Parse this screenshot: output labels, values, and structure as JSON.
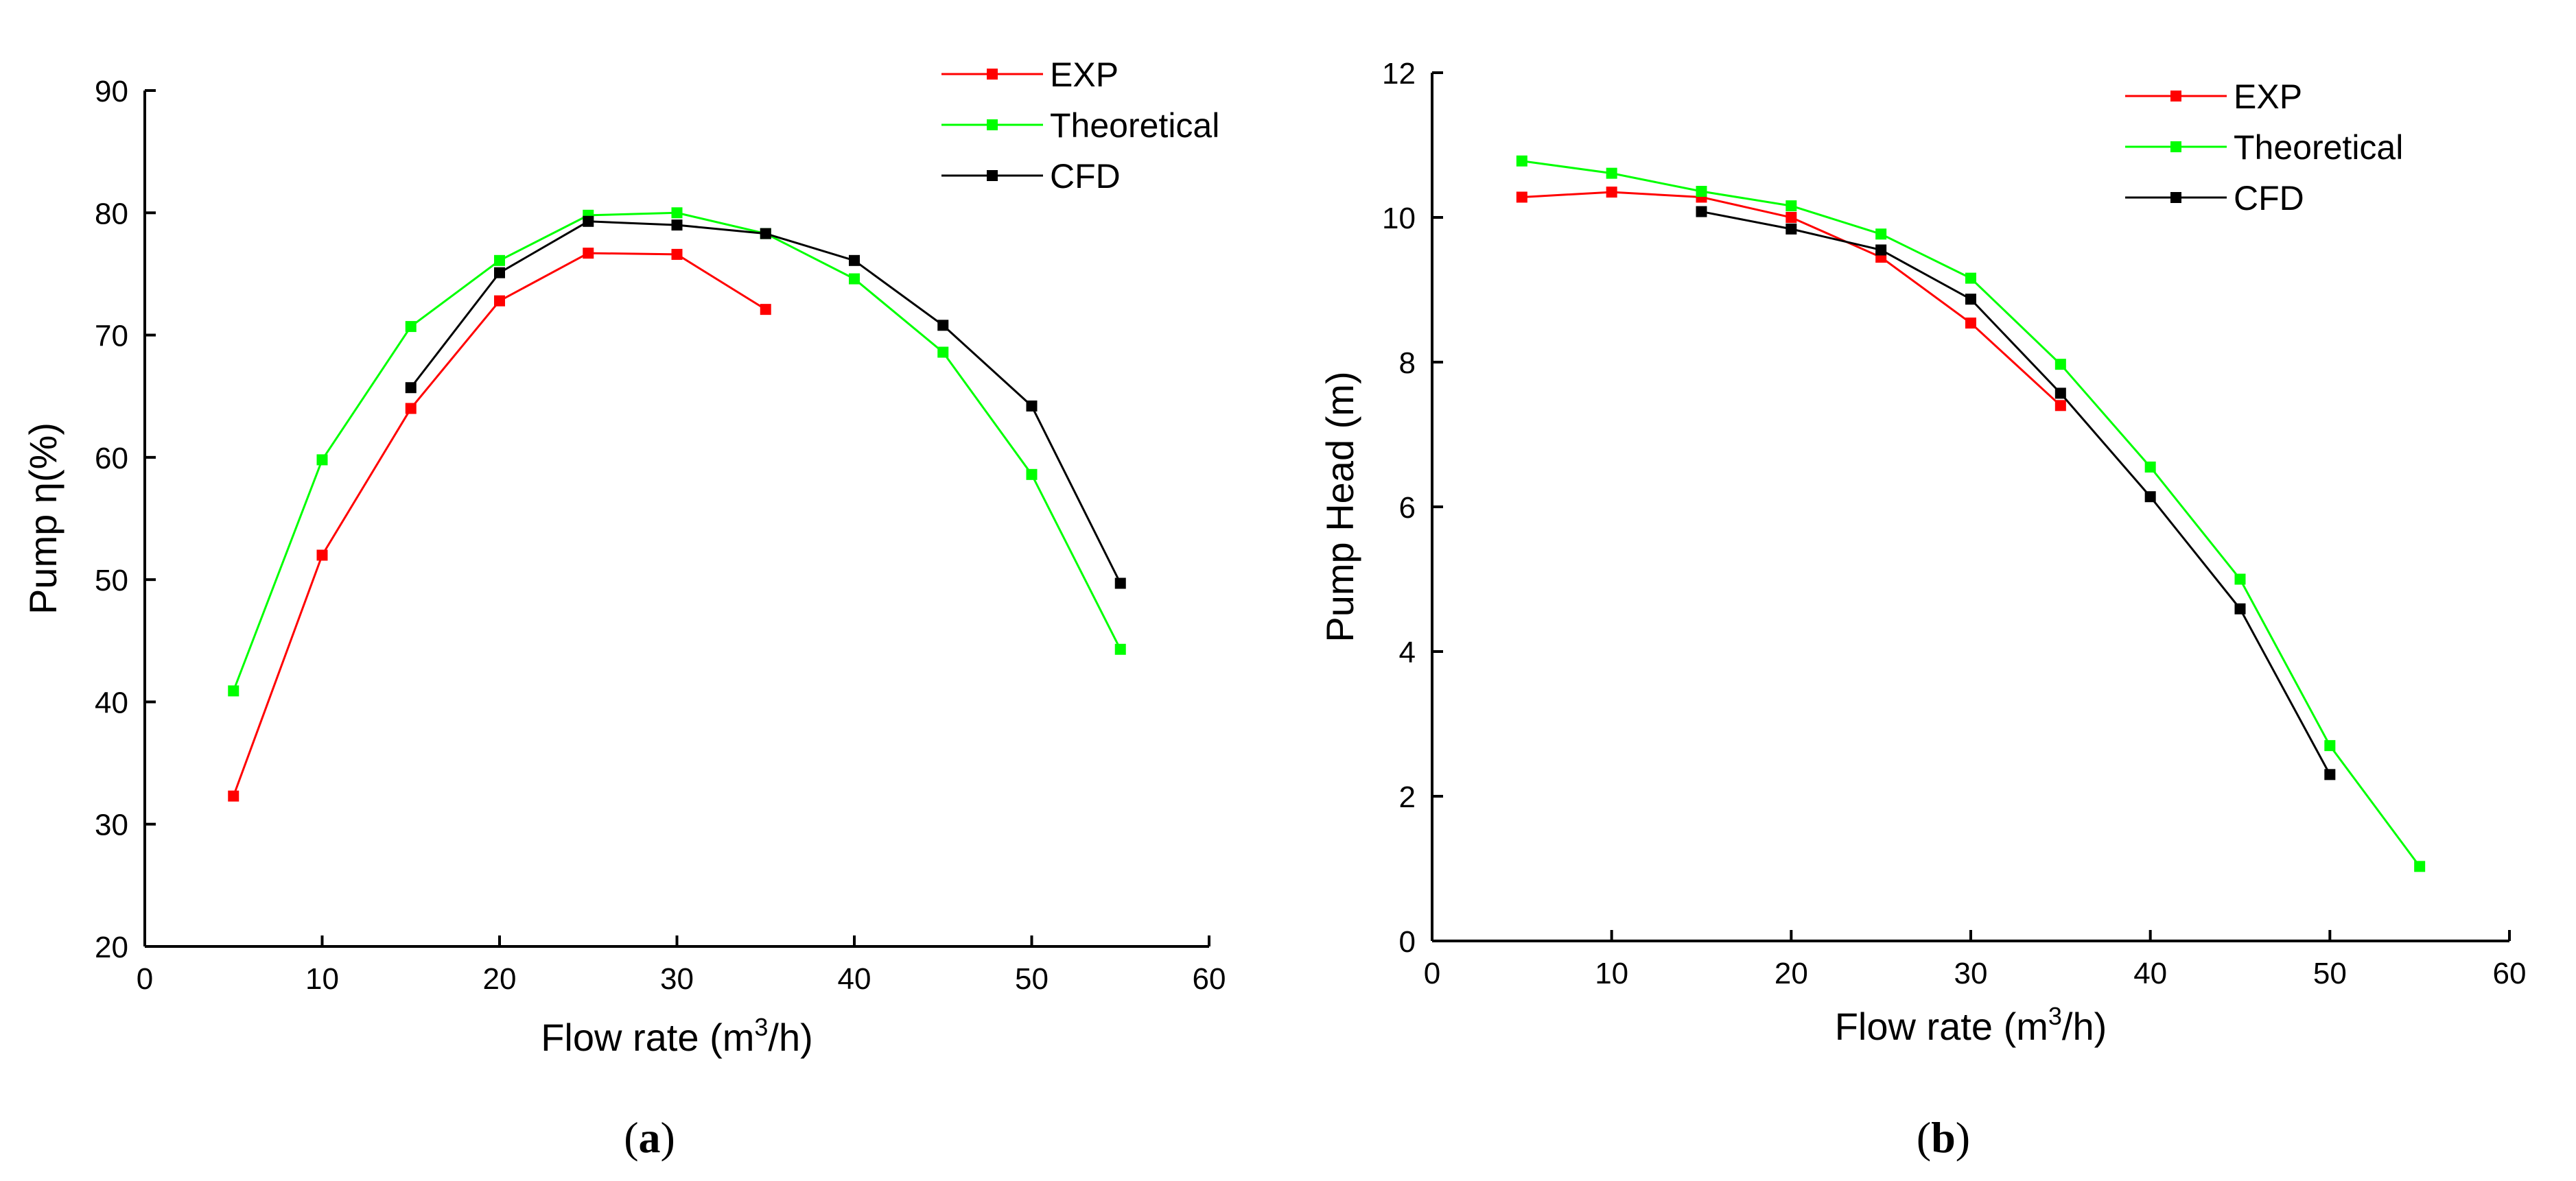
{
  "chart_data": [
    {
      "type": "line",
      "caption": {
        "open": "(",
        "letter": "a",
        "close": ")"
      },
      "xlabel_prefix": "Flow rate (m",
      "xlabel_sup": "3",
      "xlabel_suffix": "/h)",
      "ylabel": "Pump η(%)",
      "xlim": [
        0,
        60
      ],
      "ylim": [
        20,
        90
      ],
      "xticks": [
        0,
        10,
        20,
        30,
        40,
        50,
        60
      ],
      "yticks": [
        20,
        30,
        40,
        50,
        60,
        70,
        80,
        90
      ],
      "legend_position": "top-right",
      "series": [
        {
          "name": "EXP",
          "color": "#ff0000",
          "x": [
            5,
            10,
            15,
            20,
            25,
            30,
            35
          ],
          "y": [
            32.3,
            52.0,
            64.0,
            72.8,
            76.7,
            76.6,
            72.1
          ]
        },
        {
          "name": "Theoretical",
          "color": "#00ff00",
          "x": [
            5,
            10,
            15,
            20,
            25,
            30,
            35,
            40,
            45,
            50,
            55
          ],
          "y": [
            40.9,
            59.8,
            70.7,
            76.1,
            79.8,
            80.0,
            78.3,
            74.6,
            68.6,
            58.6,
            44.3
          ]
        },
        {
          "name": "CFD",
          "color": "#000000",
          "x": [
            15,
            20,
            25,
            30,
            35,
            40,
            45,
            50,
            55
          ],
          "y": [
            65.7,
            75.1,
            79.3,
            79.0,
            78.3,
            76.1,
            70.8,
            64.2,
            49.7
          ]
        }
      ]
    },
    {
      "type": "line",
      "caption": {
        "open": "(",
        "letter": "b",
        "close": ")"
      },
      "xlabel_prefix": "Flow rate (m",
      "xlabel_sup": "3",
      "xlabel_suffix": "/h)",
      "ylabel": "Pump Head (m)",
      "xlim": [
        0,
        60
      ],
      "ylim": [
        0,
        12
      ],
      "xticks": [
        0,
        10,
        20,
        30,
        40,
        50,
        60
      ],
      "yticks": [
        0,
        2,
        4,
        6,
        8,
        10,
        12
      ],
      "legend_position": "top-right",
      "series": [
        {
          "name": "EXP",
          "color": "#ff0000",
          "x": [
            5,
            10,
            15,
            20,
            25,
            30,
            35
          ],
          "y": [
            10.28,
            10.35,
            10.28,
            10.0,
            9.45,
            8.54,
            7.4
          ]
        },
        {
          "name": "Theoretical",
          "color": "#00ff00",
          "x": [
            5,
            10,
            15,
            20,
            25,
            30,
            35,
            40,
            45,
            50,
            55
          ],
          "y": [
            10.78,
            10.61,
            10.36,
            10.16,
            9.77,
            9.16,
            7.97,
            6.55,
            5.0,
            2.7,
            1.03
          ]
        },
        {
          "name": "CFD",
          "color": "#000000",
          "x": [
            15,
            20,
            25,
            30,
            35,
            40,
            45,
            50
          ],
          "y": [
            10.08,
            9.84,
            9.55,
            8.87,
            7.57,
            6.14,
            4.59,
            2.3
          ]
        }
      ]
    }
  ]
}
